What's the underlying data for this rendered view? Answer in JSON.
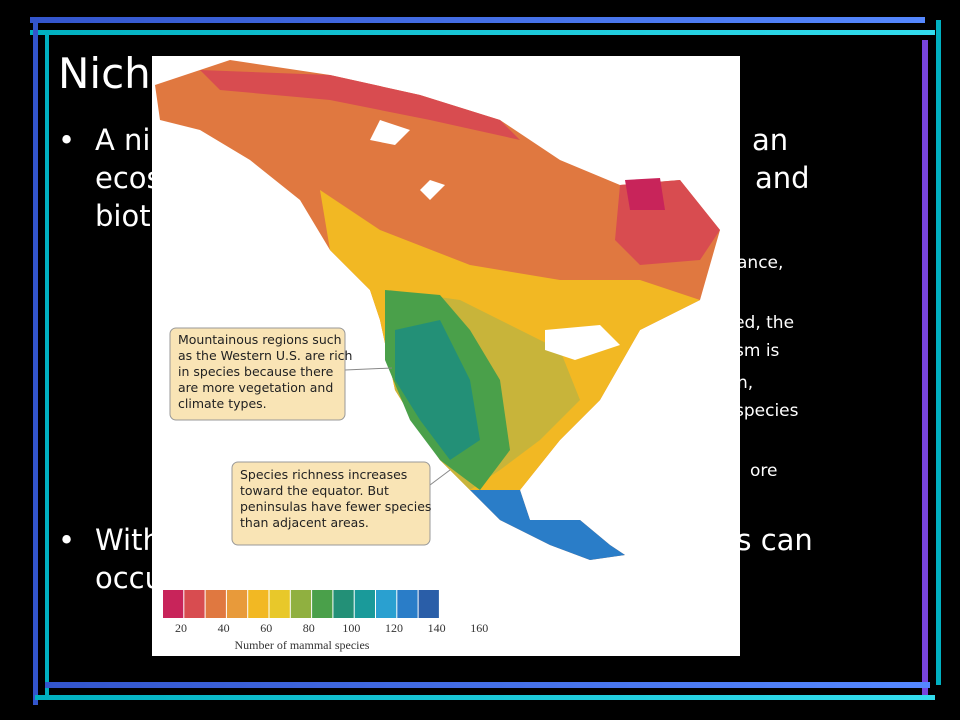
{
  "slide": {
    "title": "Nich",
    "fragments": [
      "A ni",
      "an",
      "ecos",
      "and",
      "biot",
      "ance,",
      "ated, the",
      "sm is",
      "n,",
      "species",
      "ore",
      "With",
      "ns can",
      "occu"
    ]
  },
  "map": {
    "callouts": [
      [
        "Mountainous regions such",
        "as the Western U.S. are rich",
        "in species because there",
        "are more vegetation and",
        "climate types."
      ],
      [
        "Species richness increases",
        "toward the equator. But",
        "peninsulas have fewer species",
        "than adjacent areas."
      ]
    ],
    "legend": {
      "ticks": [
        20,
        40,
        60,
        80,
        100,
        120,
        140,
        160
      ],
      "label": "Number of mammal species"
    }
  }
}
